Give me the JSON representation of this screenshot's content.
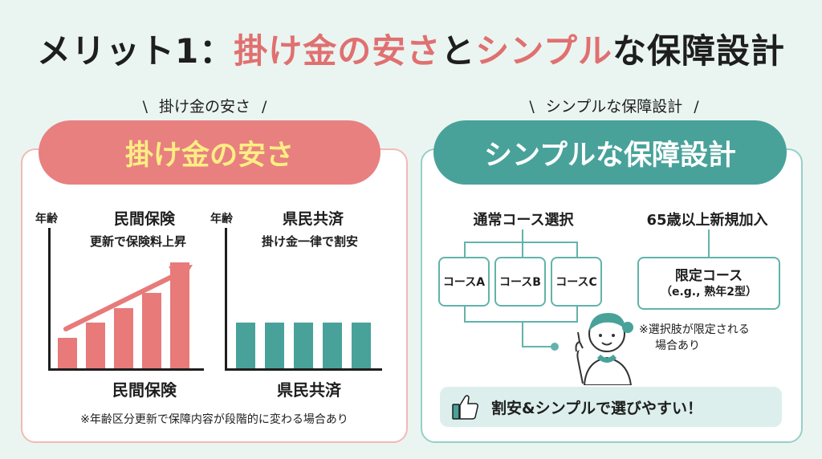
{
  "title": {
    "prefix": "メリット1：",
    "part1": "掛け金の安さ",
    "joiner": "と",
    "part2": "シンプル",
    "suffix": "な保障設計"
  },
  "left_panel": {
    "subtitle": "掛け金の安さ",
    "pill_label": "掛け金の安さ",
    "chart_minkan": {
      "axis_label": "年齢",
      "header": "民間保険",
      "subheader": "更新で保険料上昇",
      "footer": "民間保険"
    },
    "chart_kenmin": {
      "axis_label": "年齢",
      "header": "県民共済",
      "subheader": "掛け金一律で割安",
      "footer": "県民共済"
    },
    "note": "※年齢区分更新で保障内容が段階的に変わる場合あり"
  },
  "right_panel": {
    "subtitle": "シンプルな保障設計",
    "pill_label": "シンプルな保障設計",
    "normal_course_label": "通常コース選択",
    "course_a": "コースA",
    "course_b": "コースB",
    "course_c": "コースC",
    "new_join_label": "65歳以上新規加入",
    "limited_course": "限定コース",
    "limited_course_example": "（e.g., 熟年2型）",
    "limited_note_line1": "※選択肢が限定される",
    "limited_note_line2": "場合あり",
    "cta": "割安&シンプルで選びやすい！"
  },
  "colors": {
    "coral": "#e87a7a",
    "teal": "#48a29a",
    "yellow_text": "#fcee83",
    "background": "#eaf5f1"
  },
  "icons": [
    "thumbs-up-icon",
    "person-pointing-icon",
    "growth-arrow-icon"
  ],
  "chart_data": [
    {
      "type": "bar",
      "title": "民間保険",
      "xlabel": "",
      "ylabel": "年齢",
      "values": [
        2,
        3,
        4,
        5,
        7
      ],
      "ylim": [
        0,
        7
      ]
    },
    {
      "type": "bar",
      "title": "県民共済",
      "xlabel": "",
      "ylabel": "年齢",
      "values": [
        3,
        3,
        3,
        3,
        3
      ],
      "ylim": [
        0,
        7
      ]
    }
  ]
}
